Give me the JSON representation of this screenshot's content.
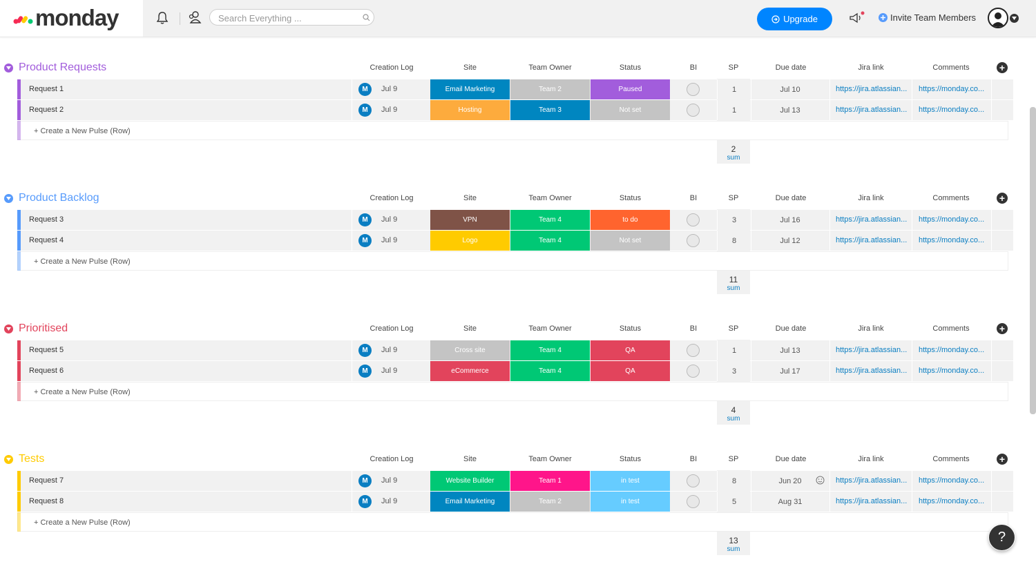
{
  "app": {
    "logo_text": "monday"
  },
  "search": {
    "placeholder": "Search Everything ..."
  },
  "topbar": {
    "upgrade_label": "Upgrade",
    "invite_label": "Invite Team Members"
  },
  "columns": [
    "Creation Log",
    "Site",
    "Team Owner",
    "Status",
    "BI",
    "SP",
    "Due date",
    "Jira link",
    "Comments"
  ],
  "new_row_label": "+ Create a New Pulse (Row)",
  "sum_label": "sum",
  "help_label": "?",
  "colors": {
    "accent": "#0085ff",
    "avatar": "#0a7ec2"
  },
  "groups": [
    {
      "title": "Product Requests",
      "color": "#a25ddc",
      "sum": "2",
      "rows": [
        {
          "name": "Request 1",
          "avatar": "M",
          "created": "Jul 9",
          "site": "Email Marketing",
          "site_color": "#0086c0",
          "owner": "Team 2",
          "owner_color": "#c4c4c4",
          "status": "Paused",
          "status_color": "#a25ddc",
          "sp": "1",
          "due": "Jul 10",
          "jira": "https://jira.atlassian...",
          "comments": "https://monday.co..."
        },
        {
          "name": "Request 2",
          "avatar": "M",
          "created": "Jul 9",
          "site": "Hosting",
          "site_color": "#fdab3d",
          "owner": "Team 3",
          "owner_color": "#0086c0",
          "status": "Not set",
          "status_color": "#c4c4c4",
          "sp": "1",
          "due": "Jul 13",
          "jira": "https://jira.atlassian...",
          "comments": "https://monday.co..."
        }
      ]
    },
    {
      "title": "Product Backlog",
      "color": "#579bfc",
      "sum": "11",
      "rows": [
        {
          "name": "Request 3",
          "avatar": "M",
          "created": "Jul 9",
          "site": "VPN",
          "site_color": "#7f5347",
          "owner": "Team 4",
          "owner_color": "#00c875",
          "status": "to do",
          "status_color": "#ff642e",
          "sp": "3",
          "due": "Jul 16",
          "jira": "https://jira.atlassian...",
          "comments": "https://monday.co..."
        },
        {
          "name": "Request 4",
          "avatar": "M",
          "created": "Jul 9",
          "site": "Logo",
          "site_color": "#ffcb00",
          "owner": "Team 4",
          "owner_color": "#00c875",
          "status": "Not set",
          "status_color": "#c4c4c4",
          "sp": "8",
          "due": "Jul 12",
          "jira": "https://jira.atlassian...",
          "comments": "https://monday.co..."
        }
      ]
    },
    {
      "title": "Prioritised",
      "color": "#e2445c",
      "sum": "4",
      "rows": [
        {
          "name": "Request 5",
          "avatar": "M",
          "created": "Jul 9",
          "site": "Cross site",
          "site_color": "#c4c4c4",
          "owner": "Team 4",
          "owner_color": "#00c875",
          "status": "QA",
          "status_color": "#e2445c",
          "sp": "1",
          "due": "Jul 13",
          "jira": "https://jira.atlassian...",
          "comments": "https://monday.co..."
        },
        {
          "name": "Request 6",
          "avatar": "M",
          "created": "Jul 9",
          "site": "eCommerce",
          "site_color": "#e2445c",
          "owner": "Team 4",
          "owner_color": "#00c875",
          "status": "QA",
          "status_color": "#e2445c",
          "sp": "3",
          "due": "Jul 17",
          "jira": "https://jira.atlassian...",
          "comments": "https://monday.co..."
        }
      ]
    },
    {
      "title": "Tests",
      "color": "#ffcb00",
      "sum": "13",
      "rows": [
        {
          "name": "Request 7",
          "avatar": "M",
          "created": "Jul 9",
          "site": "Website Builder",
          "site_color": "#00c875",
          "owner": "Team 1",
          "owner_color": "#ff158a",
          "status": "in test",
          "status_color": "#66ccff",
          "sp": "8",
          "due": "Jun 20",
          "jira": "https://jira.atlassian...",
          "comments": "https://monday.co..."
        },
        {
          "name": "Request 8",
          "avatar": "M",
          "created": "Jul 9",
          "site": "Email Marketing",
          "site_color": "#0086c0",
          "owner": "Team 2",
          "owner_color": "#c4c4c4",
          "status": "in test",
          "status_color": "#66ccff",
          "sp": "5",
          "due": "Aug 31",
          "jira": "https://jira.atlassian...",
          "comments": "https://monday.co..."
        }
      ]
    }
  ]
}
